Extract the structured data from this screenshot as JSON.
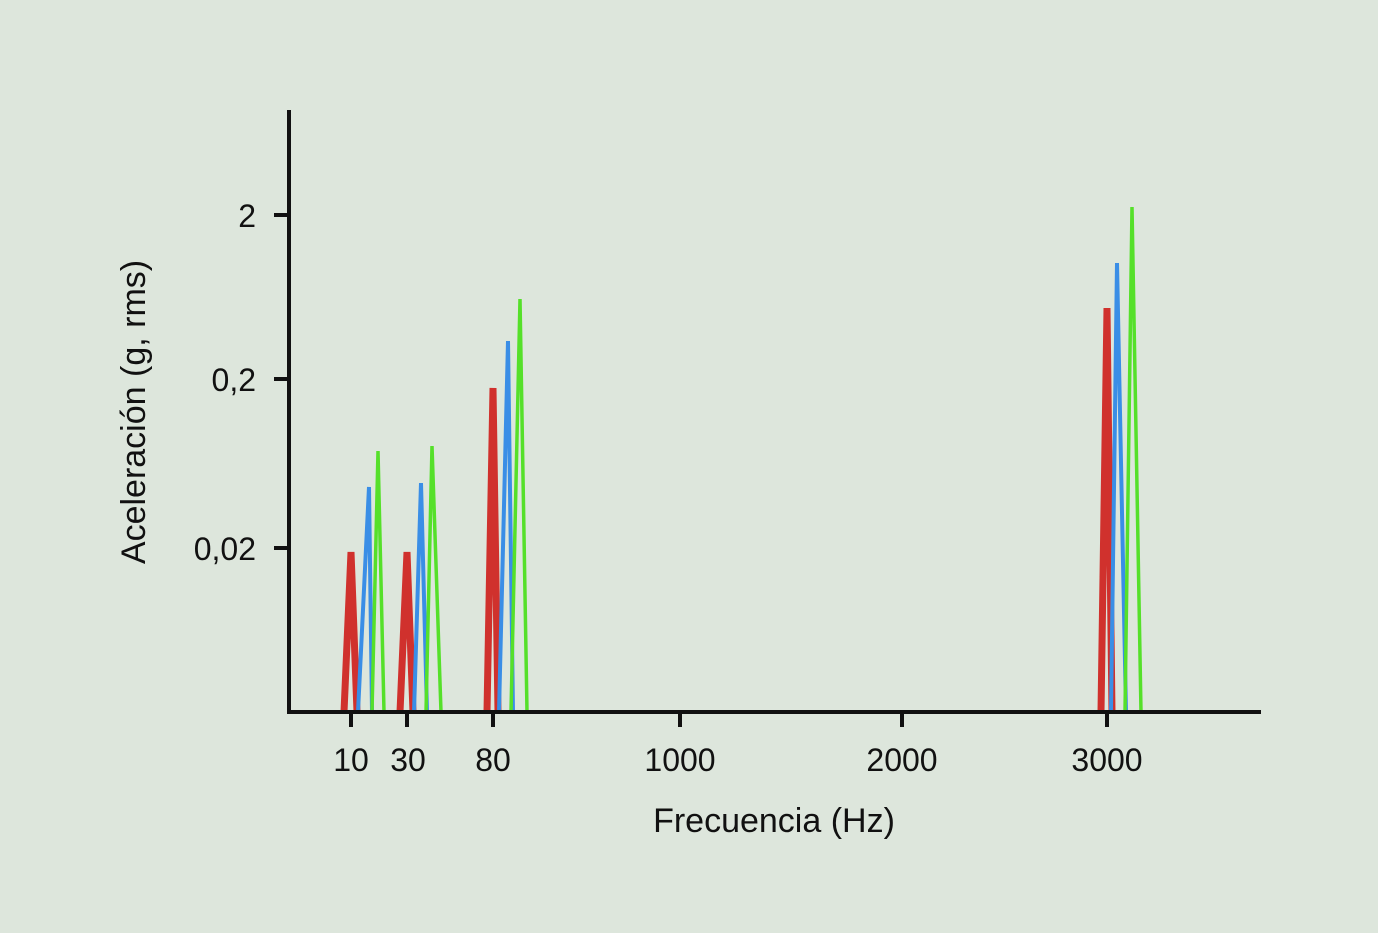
{
  "chart_data": {
    "type": "line",
    "title": "",
    "xlabel": "Frecuencia (Hz)",
    "ylabel": "Aceleración (g, rms)",
    "y_scale": "log",
    "x_ticks": [
      "10",
      "30",
      "80",
      "1000",
      "2000",
      "3000"
    ],
    "y_ticks": [
      "2",
      "0,2",
      "0,02"
    ],
    "grid": false,
    "legend": "none",
    "categories": [
      "10",
      "30",
      "80",
      "3000"
    ],
    "series": [
      {
        "name": "red",
        "color": "#d0312d",
        "values": [
          0.02,
          0.02,
          0.18,
          0.54
        ]
      },
      {
        "name": "blue",
        "color": "#3a8ee6",
        "values": [
          0.046,
          0.049,
          0.34,
          1.0
        ]
      },
      {
        "name": "green",
        "color": "#55e02a",
        "values": [
          0.076,
          0.082,
          0.61,
          2.2
        ]
      }
    ]
  },
  "layout": {
    "axis": {
      "x0": 289,
      "y0": 712,
      "x1": 1261,
      "ytop": 110
    },
    "x_tick_pos": [
      351,
      407,
      493,
      680,
      902,
      1107
    ],
    "y_tick_pos": [
      215,
      379,
      548
    ],
    "spikes": [
      {
        "color": "#d0312d",
        "l": 344,
        "p": 351,
        "r": 357,
        "py": 552,
        "w": 7
      },
      {
        "color": "#3a8ee6",
        "l": 358,
        "p": 369,
        "r": 372,
        "py": 487,
        "w": 4
      },
      {
        "color": "#55e02a",
        "l": 372,
        "p": 378,
        "r": 384,
        "py": 451,
        "w": 3.5
      },
      {
        "color": "#d0312d",
        "l": 400,
        "p": 407,
        "r": 413,
        "py": 552,
        "w": 7
      },
      {
        "color": "#3a8ee6",
        "l": 414,
        "p": 421,
        "r": 427,
        "py": 483,
        "w": 4
      },
      {
        "color": "#55e02a",
        "l": 426,
        "p": 432,
        "r": 441,
        "py": 446,
        "w": 3.5
      },
      {
        "color": "#d0312d",
        "l": 487,
        "p": 493,
        "r": 498,
        "py": 388,
        "w": 7
      },
      {
        "color": "#3a8ee6",
        "l": 499,
        "p": 508,
        "r": 513,
        "py": 341,
        "w": 4
      },
      {
        "color": "#55e02a",
        "l": 511,
        "p": 520,
        "r": 527,
        "py": 299,
        "w": 3.5
      },
      {
        "color": "#d0312d",
        "l": 1101,
        "p": 1107,
        "r": 1112,
        "py": 308,
        "w": 7
      },
      {
        "color": "#3a8ee6",
        "l": 1111,
        "p": 1117,
        "r": 1126,
        "py": 263,
        "w": 4
      },
      {
        "color": "#55e02a",
        "l": 1125,
        "p": 1132,
        "r": 1141,
        "py": 207,
        "w": 3.5
      }
    ]
  }
}
